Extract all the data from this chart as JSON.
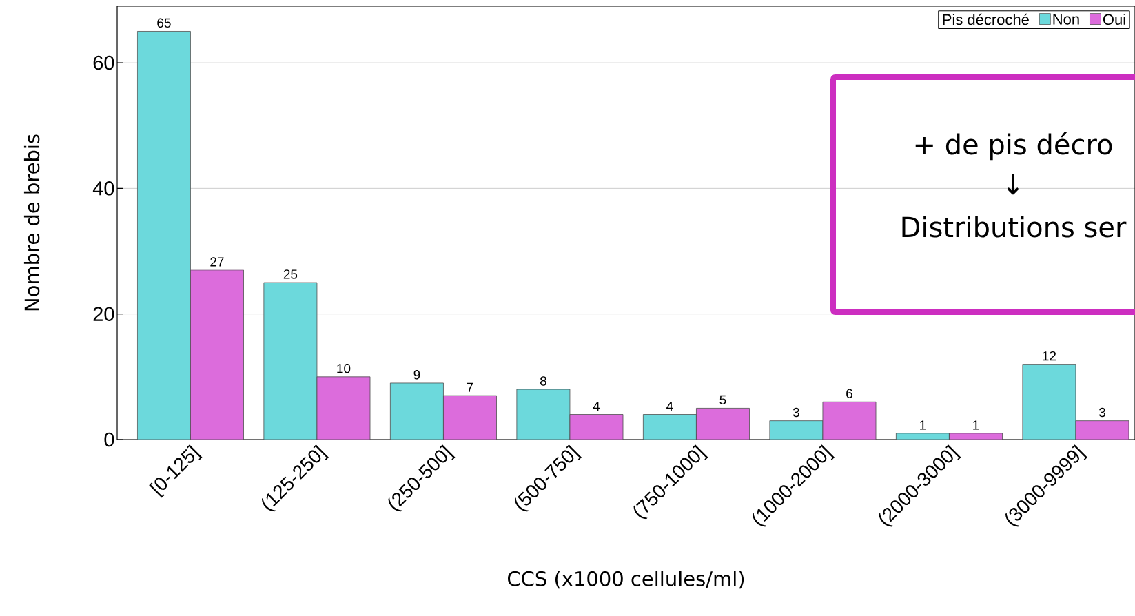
{
  "chart_data": {
    "type": "bar",
    "xlabel": "CCS (x1000 cellules/ml)",
    "ylabel": "Nombre de brebis",
    "legend_title": "Pis décroché",
    "categories": [
      "[0-125]",
      "(125-250]",
      "(250-500]",
      "(500-750]",
      "(750-1000]",
      "(1000-2000]",
      "(2000-3000]",
      "(3000-9999]"
    ],
    "series": [
      {
        "name": "Non",
        "color": "#6cd9dc",
        "values": [
          65,
          25,
          9,
          8,
          4,
          3,
          1,
          12
        ]
      },
      {
        "name": "Oui",
        "color": "#dc6cdc",
        "values": [
          27,
          10,
          7,
          4,
          5,
          6,
          1,
          3
        ]
      }
    ],
    "ylim": [
      0,
      69
    ],
    "yticks": [
      0,
      20,
      40,
      60
    ],
    "grid": "y",
    "legend": "top right",
    "data_labels": true,
    "annotations": [
      "+ de pis décro",
      "↓",
      "Distributions ser"
    ]
  }
}
